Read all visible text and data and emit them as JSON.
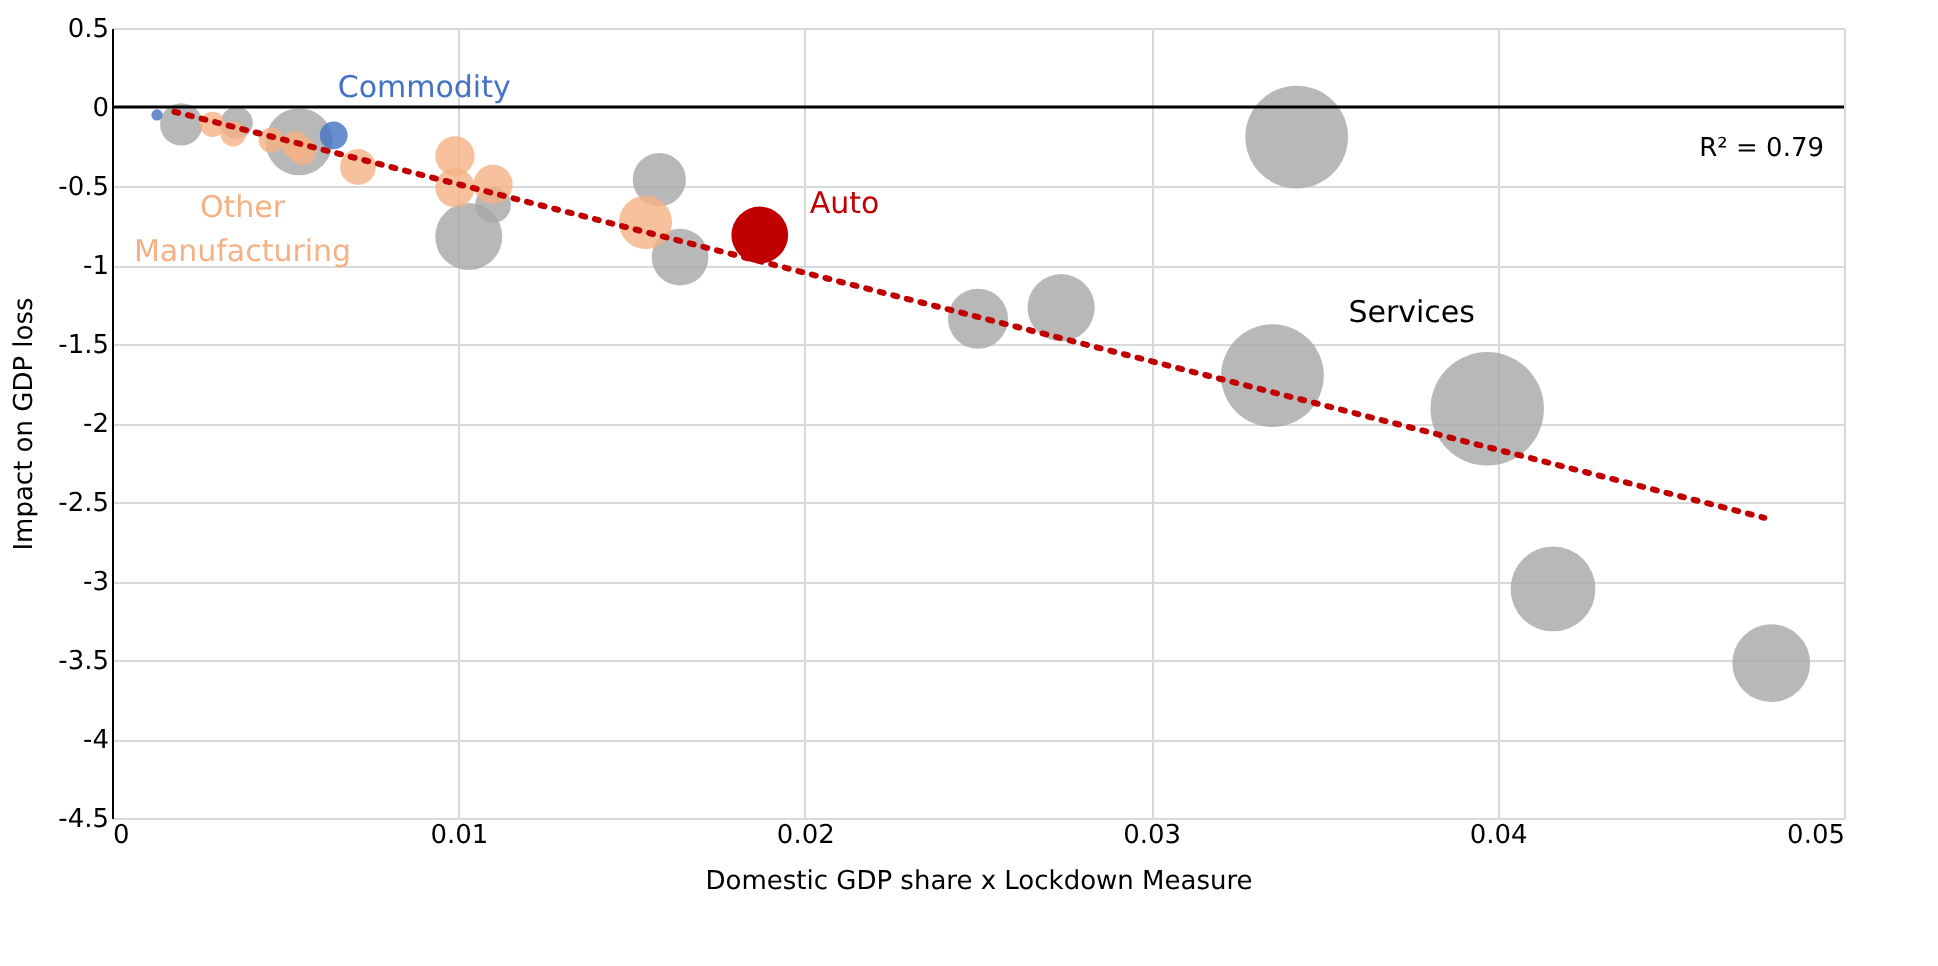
{
  "chart_data": {
    "type": "bubble",
    "xlabel": "Domestic GDP share x Lockdown Measure",
    "ylabel": "Impact on GDP loss",
    "xlim": [
      0,
      0.05
    ],
    "xticks": [
      0,
      0.01,
      0.02,
      0.03,
      0.04,
      0.05
    ],
    "ylim": [
      -4.5,
      0.5
    ],
    "yticks": [
      -4.5,
      -4,
      -3.5,
      -3,
      -2.5,
      -2,
      -1.5,
      -1,
      -0.5,
      0,
      0.5
    ],
    "grid": true,
    "legend": false,
    "series": [
      {
        "name": "Services",
        "color": "#a6a6a6",
        "x": [
          0.0342,
          0.0335,
          0.0397,
          0.0416,
          0.0479,
          0.025,
          0.0274,
          0.0158,
          0.0164,
          0.0103,
          0.011,
          0.0054,
          0.002,
          0.0036
        ],
        "values": [
          -0.19,
          -1.7,
          -1.91,
          -3.05,
          -3.52,
          -1.34,
          -1.27,
          -0.46,
          -0.95,
          -0.82,
          -0.62,
          -0.22,
          -0.11,
          -0.1
        ],
        "sizes": [
          0.82,
          0.82,
          1,
          0.56,
          0.47,
          0.28,
          0.35,
          0.22,
          0.25,
          0.35,
          0.1,
          0.35,
          0.14,
          0.08
        ]
      },
      {
        "name": "Other Manufacturing",
        "color": "#f4b183",
        "x": [
          0.0029,
          0.0035,
          0.0046,
          0.0053,
          0.0055,
          0.0071,
          0.0099,
          0.0099,
          0.011,
          0.0154
        ],
        "values": [
          -0.11,
          -0.17,
          -0.21,
          -0.24,
          -0.28,
          -0.38,
          -0.31,
          -0.51,
          -0.49,
          -0.73
        ],
        "sizes": [
          0.05,
          0.05,
          0.05,
          0.06,
          0.06,
          0.1,
          0.12,
          0.12,
          0.12,
          0.22
        ]
      },
      {
        "name": "Commodity",
        "color": "#4472c4",
        "x": [
          0.0064,
          0.0013
        ],
        "values": [
          -0.18,
          -0.05
        ],
        "sizes": [
          0.06,
          0.01
        ]
      },
      {
        "name": "Auto",
        "color": "#c00000",
        "x": [
          0.0187
        ],
        "values": [
          -0.81
        ],
        "sizes": [
          0.25
        ]
      },
      {
        "type": "line",
        "color": "#c00000",
        "line_style": "dotted",
        "marker": "none",
        "x": [
          0.0018,
          0.0477
        ],
        "values": [
          -0.03,
          -2.6
        ]
      }
    ],
    "ref_lines": [
      {
        "axis": "y",
        "value": 0,
        "color": "#000000"
      }
    ],
    "annotations": [
      "R² = 0.79"
    ]
  }
}
